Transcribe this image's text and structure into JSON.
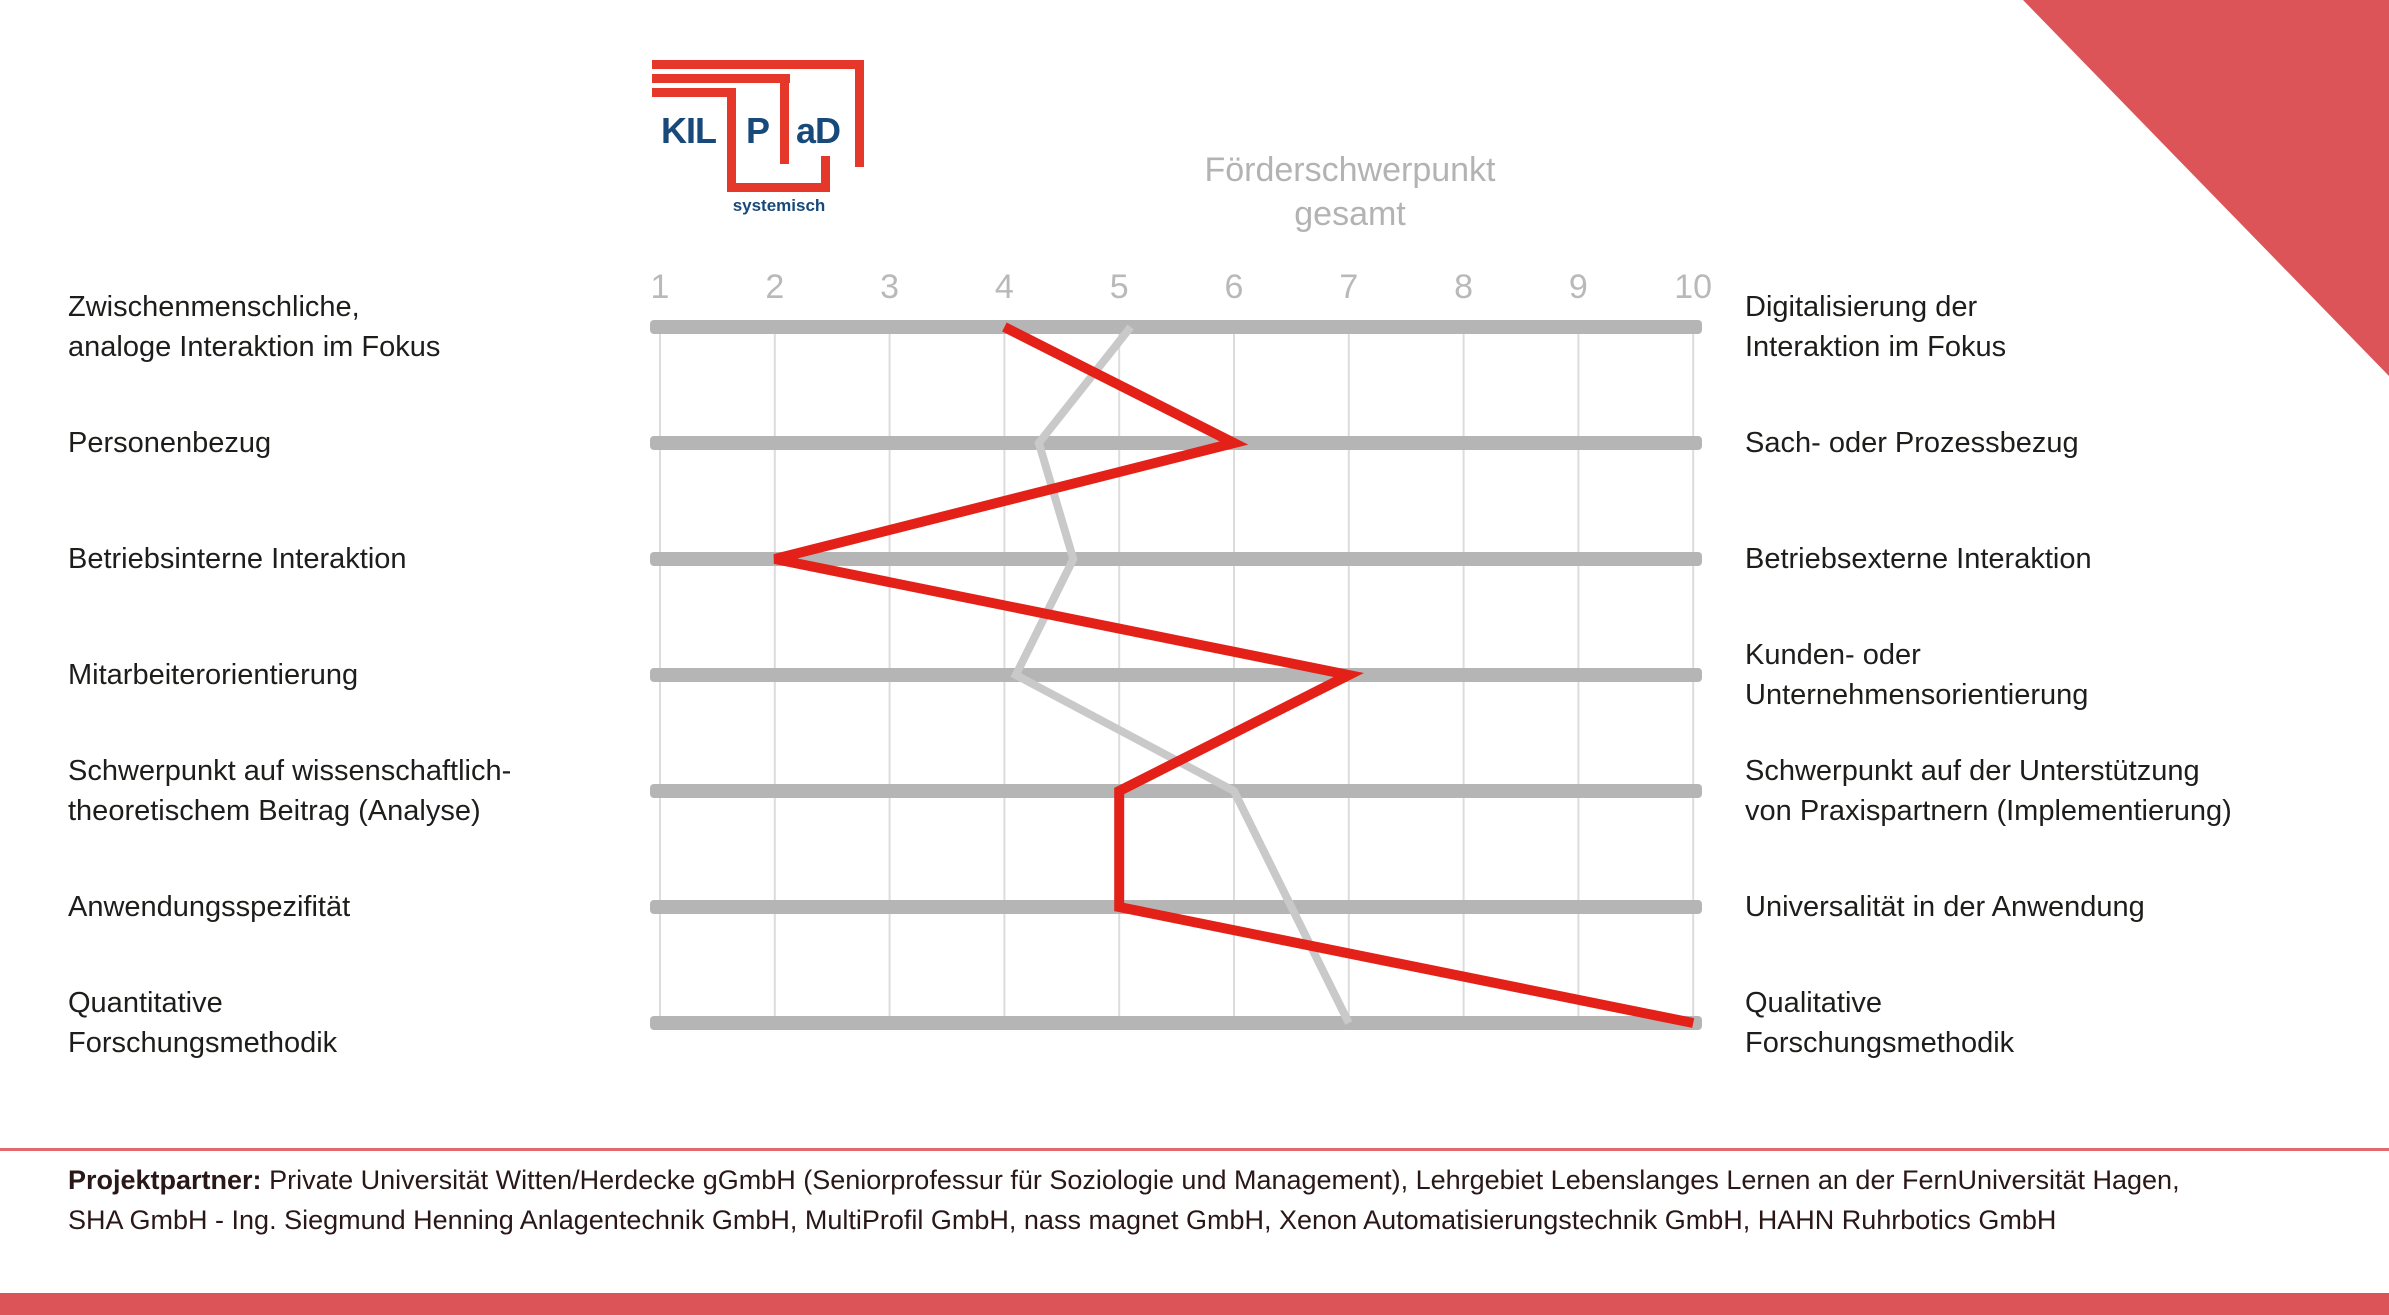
{
  "logo": {
    "kil": "KIL",
    "p": "P",
    "ad": "aD",
    "subtitle": "systemisch"
  },
  "title": {
    "line1": "Förderschwerpunkt",
    "line2": "gesamt"
  },
  "colors": {
    "accent_salmon": "#dc5358",
    "divider_salmon": "#e2696e",
    "line_red": "#e32119",
    "line_gray": "#c9c9c9",
    "bar_gray": "#b5b5b5",
    "grid_gray": "#dcdcdc",
    "tick_gray": "#b9b9b9",
    "title_gray": "#b3b3b3",
    "label_dark": "#1d1d1b",
    "logo_red": "#e6372b",
    "logo_navy": "#17497b"
  },
  "chart_data": {
    "type": "line",
    "subtype": "semantic-profile",
    "title": "Förderschwerpunkt gesamt",
    "scale": {
      "min": 1,
      "max": 10
    },
    "ticks": [
      "1",
      "2",
      "3",
      "4",
      "5",
      "6",
      "7",
      "8",
      "9",
      "10"
    ],
    "grid": true,
    "rows": [
      {
        "left": "Zwischenmenschliche,\nanaloge Interaktion im Fokus",
        "right": "Digitalisierung der\nInteraktion im Fokus"
      },
      {
        "left": "Personenbezug",
        "right": "Sach- oder Prozessbezug"
      },
      {
        "left": "Betriebsinterne Interaktion",
        "right": "Betriebsexterne Interaktion"
      },
      {
        "left": "Mitarbeiterorientierung",
        "right": "Kunden- oder\nUnternehmensorientierung"
      },
      {
        "left": "Schwerpunkt auf wissenschaftlich-\ntheoretischem Beitrag (Analyse)",
        "right": "Schwerpunkt auf der Unterstützung\nvon Praxispartnern (Implementierung)"
      },
      {
        "left": "Anwendungsspezifität",
        "right": "Universalität in der Anwendung"
      },
      {
        "left": "Quantitative\nForschungsmethodik",
        "right": "Qualitative\nForschungsmethodik"
      }
    ],
    "series": [
      {
        "name": "Förderschwerpunkt gesamt",
        "color": "#c9c9c9",
        "stroke_width": 8,
        "values": [
          5.1,
          4.3,
          4.6,
          4.1,
          6.0,
          6.5,
          7.0
        ]
      },
      {
        "name": "KILPaD",
        "color": "#e32119",
        "stroke_width": 10,
        "values": [
          4,
          6,
          2,
          7,
          5,
          5,
          10
        ]
      }
    ]
  },
  "footer": {
    "label": "Projektpartner:",
    "line1": "Private Universität Witten/Herdecke gGmbH (Seniorprofessur für Soziologie und Management), Lehrgebiet Lebenslanges Lernen an der FernUniversität Hagen,",
    "line2": "SHA GmbH - Ing. Siegmund Henning Anlagentechnik GmbH, MultiProfil GmbH, nass magnet GmbH, Xenon Automatisierungstechnik GmbH, HAHN Ruhrbotics GmbH"
  }
}
